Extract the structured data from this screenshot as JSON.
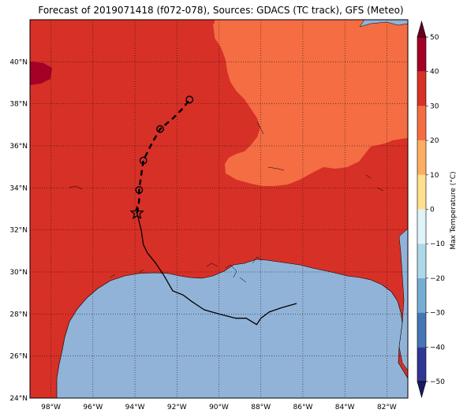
{
  "title": "Forecast of 2019071418 (f072-078), Sources: GDACS (TC track), GFS (Meteo)",
  "map": {
    "lon_range": [
      -99,
      -81
    ],
    "lat_range": [
      24,
      42
    ],
    "x_ticks": [
      "98°W",
      "96°W",
      "94°W",
      "92°W",
      "90°W",
      "88°W",
      "86°W",
      "84°W",
      "82°W"
    ],
    "x_tick_values": [
      -98,
      -96,
      -94,
      -92,
      -90,
      -88,
      -86,
      -84,
      -82
    ],
    "y_ticks": [
      "24°N",
      "26°N",
      "28°N",
      "30°N",
      "32°N",
      "34°N",
      "36°N",
      "38°N",
      "40°N"
    ],
    "y_tick_values": [
      24,
      26,
      28,
      30,
      32,
      34,
      36,
      38,
      40
    ],
    "gridlines": true,
    "colors": {
      "land_hot": "#d73027",
      "land_warm": "#f46d43",
      "land_very_hot": "#a50026",
      "ocean": "#91b3d7",
      "track": "#000000"
    },
    "track_observed": [
      [
        -86.3,
        28.5
      ],
      [
        -87.0,
        28.3
      ],
      [
        -87.6,
        28.1
      ],
      [
        -88.0,
        27.8
      ],
      [
        -88.2,
        27.5
      ],
      [
        -88.7,
        27.8
      ],
      [
        -89.2,
        27.8
      ],
      [
        -90.0,
        28.0
      ],
      [
        -90.7,
        28.2
      ],
      [
        -91.3,
        28.6
      ],
      [
        -91.7,
        28.9
      ],
      [
        -92.2,
        29.1
      ],
      [
        -92.6,
        29.8
      ],
      [
        -93.0,
        30.4
      ],
      [
        -93.4,
        30.9
      ],
      [
        -93.6,
        31.3
      ],
      [
        -93.7,
        32.0
      ],
      [
        -93.9,
        32.8
      ]
    ],
    "track_forecast": [
      [
        -93.9,
        32.8
      ],
      [
        -93.8,
        33.4
      ],
      [
        -93.8,
        33.9
      ],
      [
        -93.7,
        34.6
      ],
      [
        -93.6,
        35.3
      ],
      [
        -93.2,
        36.1
      ],
      [
        -92.8,
        36.8
      ],
      [
        -92.2,
        37.3
      ],
      [
        -91.7,
        37.8
      ],
      [
        -91.4,
        38.2
      ]
    ],
    "track_points": [
      [
        -93.8,
        33.9
      ],
      [
        -93.6,
        35.3
      ],
      [
        -92.8,
        36.8
      ],
      [
        -91.4,
        38.2
      ]
    ],
    "current_position": [
      -93.9,
      32.8
    ]
  },
  "colorbar": {
    "label": "Max Temperature (°C)",
    "min": -50,
    "max": 50,
    "tick_values": [
      -50,
      -40,
      -30,
      -20,
      -10,
      0,
      10,
      20,
      30,
      40,
      50
    ],
    "tick_labels": [
      "−50",
      "−40",
      "−30",
      "−20",
      "−10",
      "0",
      "10",
      "20",
      "30",
      "40",
      "50"
    ],
    "colors": [
      "#313695",
      "#4575b4",
      "#74add1",
      "#abd9e9",
      "#e0f3f8",
      "#fee090",
      "#fdae61",
      "#f46d43",
      "#d73027",
      "#a50026"
    ],
    "under_color": "#1a1a5e",
    "over_color": "#67001f"
  }
}
